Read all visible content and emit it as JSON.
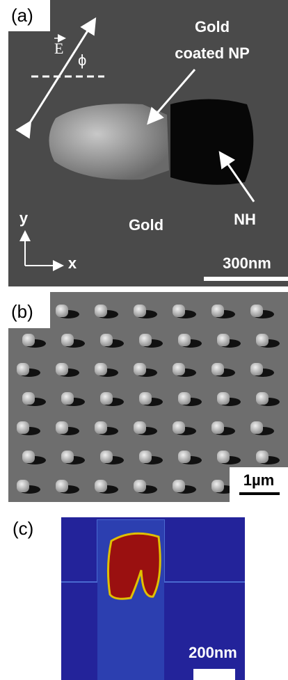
{
  "panels": [
    {
      "label": "(a)",
      "field_symbol": "E",
      "angle_symbol": "ϕ",
      "np_label": [
        "Gold",
        "coated NP"
      ],
      "hole_label": "NH",
      "substrate_label": "Gold",
      "axis_y": "y",
      "axis_x": "x",
      "scale_bar": "300nm"
    },
    {
      "label": "(b)",
      "scale_bar": "1µm"
    },
    {
      "label": "(c)",
      "scale_bar": "200nm"
    }
  ]
}
